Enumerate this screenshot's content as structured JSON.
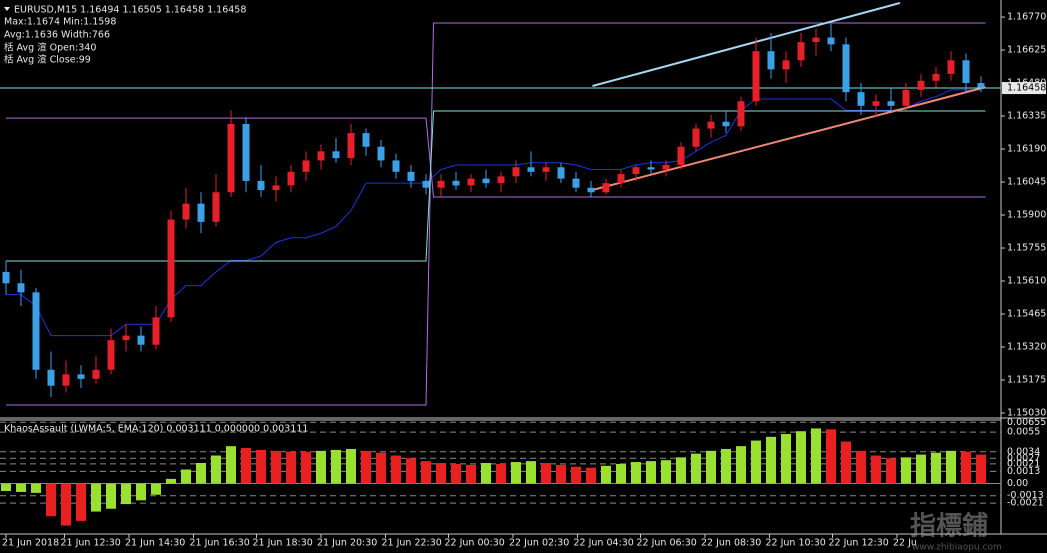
{
  "chart_data": [
    {
      "type": "candlestick",
      "title": "EURUSD,M15  1.16494 1.16505 1.16458 1.16458",
      "annotations": [
        "Max:1.1674 Min:1.1598",
        "Avg:1.1636 Width:766",
        "栝 Avg 渲 Open:340",
        "栝 Avg 渲 Close:99"
      ],
      "up_color": "#e8202a",
      "down_color": "#3ca0e6",
      "ylim": [
        1.15008,
        1.16845
      ],
      "yticks": [
        {
          "value": 1.1677,
          "label": "1.16770"
        },
        1.16625,
        {
          "value": 1.1648,
          "label": "1.16480"
        },
        1.16335,
        {
          "value": 1.1619,
          "label": "1.16190"
        },
        1.16045,
        {
          "value": 1.159,
          "label": "1.15900"
        },
        1.15755,
        {
          "value": 1.1561,
          "label": "1.15610"
        },
        1.15465,
        {
          "value": 1.1532,
          "label": "1.15320"
        },
        1.15175,
        {
          "value": 1.1503,
          "label": "1.15030"
        }
      ],
      "xticks": [
        {
          "value": 0,
          "label": "21 Jun 2018"
        },
        {
          "value": 3.9,
          "label": "21 Jun 12:30"
        },
        {
          "value": 8.2,
          "label": "21 Jun 14:30"
        },
        {
          "value": 12.5,
          "label": "21 Jun 16:30"
        },
        {
          "value": 16.7,
          "label": "21 Jun 18:30"
        },
        {
          "value": 21.0,
          "label": "21 Jun 20:30"
        },
        {
          "value": 25.3,
          "label": "21 Jun 22:30"
        },
        {
          "value": 29.5,
          "label": "22 Jun 00:30"
        },
        {
          "value": 33.8,
          "label": "22 Jun 02:30"
        },
        {
          "value": 38.1,
          "label": "22 Jun 04:30"
        },
        {
          "value": 42.3,
          "label": "22 Jun 06:30"
        },
        {
          "value": 46.6,
          "label": "22 Jun 08:30"
        },
        {
          "value": 50.9,
          "label": "22 Jun 10:30"
        },
        {
          "value": 55.1,
          "label": "22 Jun 12:30"
        },
        {
          "value": 59.4,
          "label": "22 Ju"
        }
      ],
      "current_price": 1.16458,
      "price_line_color": "#7fe0e0",
      "ohlc": [
        [
          1.1565,
          1.157,
          1.1555,
          1.156
        ],
        [
          1.156,
          1.1566,
          1.155,
          1.1556
        ],
        [
          1.1556,
          1.1558,
          1.1518,
          1.1522
        ],
        [
          1.1522,
          1.153,
          1.151,
          1.1515
        ],
        [
          1.1515,
          1.1526,
          1.1512,
          1.152
        ],
        [
          1.152,
          1.1524,
          1.1514,
          1.1518
        ],
        [
          1.1518,
          1.1528,
          1.1516,
          1.1522
        ],
        [
          1.1522,
          1.154,
          1.152,
          1.1535
        ],
        [
          1.1535,
          1.1542,
          1.153,
          1.1537
        ],
        [
          1.1537,
          1.1541,
          1.153,
          1.1533
        ],
        [
          1.1533,
          1.155,
          1.1531,
          1.1545
        ],
        [
          1.1545,
          1.1592,
          1.1543,
          1.1588
        ],
        [
          1.1588,
          1.1602,
          1.1584,
          1.1595
        ],
        [
          1.1595,
          1.16,
          1.1582,
          1.1587
        ],
        [
          1.1587,
          1.1608,
          1.1585,
          1.16
        ],
        [
          1.16,
          1.1636,
          1.1598,
          1.163
        ],
        [
          1.163,
          1.1633,
          1.16,
          1.1605
        ],
        [
          1.1605,
          1.1612,
          1.1598,
          1.1601
        ],
        [
          1.1601,
          1.1607,
          1.1596,
          1.1603
        ],
        [
          1.1603,
          1.1612,
          1.16,
          1.1609
        ],
        [
          1.1609,
          1.1618,
          1.1605,
          1.1614
        ],
        [
          1.1614,
          1.1621,
          1.161,
          1.1618
        ],
        [
          1.1618,
          1.1624,
          1.1613,
          1.1615
        ],
        [
          1.1615,
          1.163,
          1.1612,
          1.1626
        ],
        [
          1.1626,
          1.1628,
          1.1616,
          1.162
        ],
        [
          1.162,
          1.1623,
          1.1611,
          1.1614
        ],
        [
          1.1614,
          1.1617,
          1.1606,
          1.1609
        ],
        [
          1.1609,
          1.1612,
          1.1602,
          1.1605
        ],
        [
          1.1605,
          1.1608,
          1.1599,
          1.1602
        ],
        [
          1.1602,
          1.1608,
          1.1598,
          1.1605
        ],
        [
          1.1605,
          1.1609,
          1.1601,
          1.1603
        ],
        [
          1.1603,
          1.1608,
          1.16,
          1.1606
        ],
        [
          1.1606,
          1.161,
          1.1602,
          1.1604
        ],
        [
          1.1604,
          1.1609,
          1.16,
          1.1607
        ],
        [
          1.1607,
          1.1614,
          1.1604,
          1.1611
        ],
        [
          1.1611,
          1.1618,
          1.1607,
          1.1609
        ],
        [
          1.1609,
          1.1613,
          1.1605,
          1.1611
        ],
        [
          1.1611,
          1.1613,
          1.1604,
          1.1606
        ],
        [
          1.1606,
          1.1609,
          1.16,
          1.1602
        ],
        [
          1.1602,
          1.1605,
          1.1598,
          1.16
        ],
        [
          1.16,
          1.1606,
          1.1599,
          1.1604
        ],
        [
          1.1604,
          1.161,
          1.1602,
          1.1608
        ],
        [
          1.1608,
          1.1612,
          1.1605,
          1.1611
        ],
        [
          1.1611,
          1.1614,
          1.1608,
          1.161
        ],
        [
          1.161,
          1.1614,
          1.1607,
          1.1612
        ],
        [
          1.1612,
          1.1622,
          1.161,
          1.162
        ],
        [
          1.162,
          1.163,
          1.1618,
          1.1628
        ],
        [
          1.1628,
          1.1634,
          1.1624,
          1.1631
        ],
        [
          1.1631,
          1.1636,
          1.1626,
          1.1629
        ],
        [
          1.1629,
          1.1642,
          1.1627,
          1.164
        ],
        [
          1.164,
          1.1668,
          1.1638,
          1.1662
        ],
        [
          1.1662,
          1.167,
          1.165,
          1.1654
        ],
        [
          1.1654,
          1.1662,
          1.1648,
          1.1658
        ],
        [
          1.1658,
          1.167,
          1.1655,
          1.1666
        ],
        [
          1.1666,
          1.1672,
          1.166,
          1.1668
        ],
        [
          1.1668,
          1.1674,
          1.1662,
          1.1665
        ],
        [
          1.1665,
          1.1668,
          1.164,
          1.1644
        ],
        [
          1.1644,
          1.1648,
          1.1634,
          1.1638
        ],
        [
          1.1638,
          1.1643,
          1.1633,
          1.164
        ],
        [
          1.164,
          1.1646,
          1.1636,
          1.1638
        ],
        [
          1.1638,
          1.1648,
          1.1636,
          1.1645
        ],
        [
          1.1645,
          1.1652,
          1.1642,
          1.1649
        ],
        [
          1.1649,
          1.1655,
          1.1646,
          1.1652
        ],
        [
          1.1652,
          1.1662,
          1.1649,
          1.1658
        ],
        [
          1.1658,
          1.1661,
          1.1644,
          1.1648
        ],
        [
          1.1648,
          1.1651,
          1.1644,
          1.1646
        ]
      ],
      "lines": [
        {
          "color": "#2233dd",
          "x": [
            0,
            1,
            2,
            3,
            4,
            5,
            6,
            7,
            8,
            9,
            10,
            11,
            12,
            13,
            14,
            15,
            16,
            17,
            18,
            19,
            20,
            21,
            22,
            23,
            24,
            25,
            26,
            27,
            28,
            29,
            30,
            31,
            32,
            33,
            34,
            35,
            36,
            37,
            38,
            39,
            40,
            41,
            42,
            43,
            44,
            45,
            46,
            47,
            48,
            49,
            50,
            51,
            52,
            53,
            54,
            55,
            56,
            57,
            58,
            59,
            60,
            61,
            62,
            63,
            64,
            65
          ],
          "values": [
            1.1555,
            1.1555,
            1.155,
            1.1537,
            1.1537,
            1.1537,
            1.1537,
            1.1537,
            1.1542,
            1.1542,
            1.1542,
            1.1553,
            1.1559,
            1.1559,
            1.1565,
            1.157,
            1.157,
            1.1572,
            1.1578,
            1.158,
            1.158,
            1.1582,
            1.1585,
            1.1592,
            1.1604,
            1.1604,
            1.1604,
            1.1604,
            1.1604,
            1.161,
            1.1612,
            1.1612,
            1.1612,
            1.1612,
            1.1612,
            1.1613,
            1.1613,
            1.1613,
            1.1612,
            1.161,
            1.161,
            1.161,
            1.1612,
            1.1613,
            1.1613,
            1.1614,
            1.1618,
            1.1622,
            1.1625,
            1.1636,
            1.1641,
            1.1641,
            1.1641,
            1.1641,
            1.1641,
            1.1641,
            1.1636,
            1.1636,
            1.1636,
            1.1636,
            1.1637,
            1.164,
            1.1642,
            1.1645,
            1.1645,
            1.1645
          ]
        },
        {
          "color": "#b070d8",
          "x": [
            0,
            28,
            28.5,
            65.3
          ],
          "values": [
            1.16326,
            1.16326,
            1.15979,
            1.15979
          ]
        },
        {
          "color": "#b070d8",
          "x": [
            0,
            28,
            28.5,
            65.3
          ],
          "values": [
            1.15065,
            1.15065,
            1.16744,
            1.16744
          ]
        },
        {
          "color": "#7fe0e0",
          "x": [
            0,
            28,
            28.5,
            65.3
          ],
          "values": [
            1.15698,
            1.15698,
            1.16357,
            1.16357
          ]
        },
        {
          "color": "#a8d8f0",
          "x": [
            39.1,
            59.6
          ],
          "values": [
            1.16467,
            1.16832
          ]
        },
        {
          "color": "#f08878",
          "x": [
            39.1,
            65.3
          ],
          "values": [
            1.1601,
            1.16462
          ]
        }
      ]
    },
    {
      "type": "bar",
      "title": "KhaosAssault (LWMA:5, EMA:120) 0.003111 0.000000 0.003111",
      "ylim": [
        -0.0054,
        0.0068
      ],
      "yticks": [
        0.006553,
        0.0055,
        0.0034,
        0.0027,
        0.0021,
        0.0013,
        {
          "value": 0,
          "label": "0.00"
        },
        -0.0013,
        -0.0021
      ],
      "level_color": "#8a8a8a",
      "series": [
        {
          "color": "#9ae030",
          "values": [
            -0.0008,
            -0.0009,
            -0.001,
            null,
            null,
            null,
            -0.003,
            -0.0027,
            -0.0022,
            -0.0018,
            -0.0012,
            0.0005,
            0.0015,
            0.0022,
            0.003,
            0.004,
            null,
            null,
            null,
            null,
            null,
            0.0035,
            0.0036,
            0.0037,
            null,
            null,
            null,
            null,
            null,
            null,
            null,
            null,
            0.0022,
            null,
            0.0023,
            0.0024,
            null,
            null,
            null,
            null,
            0.0019,
            0.0021,
            0.0023,
            0.0024,
            0.0025,
            0.0028,
            0.0032,
            0.0035,
            0.0037,
            0.004,
            0.0046,
            0.005,
            0.0053,
            0.0056,
            0.0059,
            null,
            null,
            null,
            null,
            null,
            0.0028,
            0.0031,
            0.0033,
            0.0035,
            null,
            null
          ]
        },
        {
          "color": "#e82020",
          "values": [
            null,
            null,
            null,
            -0.0035,
            -0.0045,
            -0.004,
            null,
            null,
            null,
            null,
            null,
            null,
            null,
            null,
            null,
            null,
            0.0038,
            0.0036,
            0.0035,
            0.0034,
            0.0034,
            null,
            null,
            null,
            0.0035,
            0.0033,
            0.003,
            0.0027,
            0.0024,
            0.0022,
            0.0021,
            0.002,
            null,
            0.0021,
            null,
            null,
            0.0022,
            0.002,
            0.0018,
            0.0017,
            null,
            null,
            null,
            null,
            null,
            null,
            null,
            null,
            null,
            null,
            null,
            null,
            null,
            null,
            null,
            0.0058,
            0.0045,
            0.0035,
            0.003,
            0.0027,
            null,
            null,
            null,
            null,
            0.0034,
            0.0031
          ]
        }
      ]
    }
  ],
  "watermark": {
    "text": "指標鋪",
    "url": "www.zhibiaopu.com"
  }
}
